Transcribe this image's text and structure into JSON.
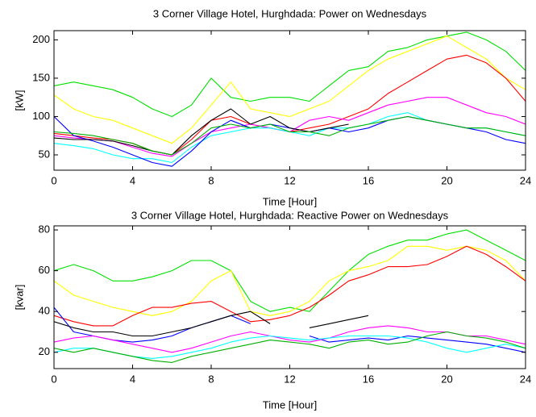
{
  "chart_data": [
    {
      "type": "line",
      "title": "3 Corner Village Hotel, Hurghdada: Power on Wednesdays",
      "xlabel": "Time [Hour]",
      "ylabel": "[kW]",
      "x": [
        0,
        1,
        2,
        3,
        4,
        5,
        6,
        7,
        8,
        9,
        10,
        11,
        12,
        13,
        14,
        15,
        16,
        17,
        18,
        19,
        20,
        21,
        22,
        23,
        24
      ],
      "xlim": [
        0,
        24
      ],
      "ylim": [
        30,
        212
      ],
      "xticks": [
        0,
        4,
        8,
        12,
        16,
        20,
        24
      ],
      "yticks": [
        50,
        100,
        150,
        200
      ],
      "series": [
        {
          "color": "#00e000",
          "values": [
            140,
            145,
            140,
            135,
            125,
            110,
            100,
            115,
            150,
            125,
            120,
            125,
            125,
            120,
            140,
            160,
            165,
            185,
            190,
            200,
            205,
            210,
            200,
            185,
            160
          ]
        },
        {
          "color": "#ffff00",
          "values": [
            128,
            110,
            100,
            95,
            85,
            75,
            65,
            85,
            115,
            145,
            110,
            105,
            100,
            110,
            120,
            140,
            160,
            175,
            185,
            195,
            205,
            190,
            175,
            150,
            135
          ]
        },
        {
          "color": "#ff0000",
          "values": [
            78,
            75,
            72,
            70,
            65,
            55,
            50,
            70,
            95,
            100,
            90,
            85,
            80,
            85,
            90,
            100,
            110,
            130,
            145,
            160,
            175,
            180,
            170,
            150,
            120
          ]
        },
        {
          "color": "#ff00ff",
          "values": [
            75,
            72,
            70,
            68,
            60,
            52,
            48,
            65,
            80,
            85,
            90,
            85,
            80,
            95,
            100,
            95,
            105,
            115,
            120,
            125,
            125,
            115,
            105,
            100,
            90
          ]
        },
        {
          "color": "#00ffff",
          "values": [
            65,
            62,
            58,
            50,
            45,
            45,
            40,
            60,
            75,
            80,
            85,
            85,
            80,
            75,
            85,
            85,
            90,
            100,
            105,
            95,
            90,
            85,
            85,
            80,
            75
          ]
        },
        {
          "color": "#0000ff",
          "values": [
            100,
            75,
            68,
            60,
            50,
            40,
            35,
            55,
            80,
            95,
            85,
            90,
            85,
            80,
            85,
            80,
            85,
            95,
            100,
            95,
            90,
            85,
            80,
            70,
            65
          ]
        },
        {
          "color": "#000000",
          "values": [
            72,
            70,
            70,
            68,
            62,
            55,
            50,
            75,
            95,
            110,
            90,
            100,
            85,
            80,
            85,
            90,
            null,
            null,
            null,
            null,
            null,
            null,
            null,
            null,
            null
          ]
        },
        {
          "color": "#00b000",
          "values": [
            80,
            78,
            75,
            70,
            65,
            55,
            50,
            65,
            85,
            90,
            85,
            90,
            80,
            80,
            75,
            85,
            90,
            95,
            100,
            95,
            90,
            85,
            85,
            80,
            75
          ]
        }
      ]
    },
    {
      "type": "line",
      "title": "3 Corner Village Hotel, Hurghdada: Reactive Power on Wednesdays",
      "xlabel": "Time [Hour]",
      "ylabel": "[kvar]",
      "x": [
        0,
        1,
        2,
        3,
        4,
        5,
        6,
        7,
        8,
        9,
        10,
        11,
        12,
        13,
        14,
        15,
        16,
        17,
        18,
        19,
        20,
        21,
        22,
        23,
        24
      ],
      "xlim": [
        0,
        24
      ],
      "ylim": [
        12,
        82
      ],
      "xticks": [
        0,
        4,
        8,
        12,
        16,
        20,
        24
      ],
      "yticks": [
        20,
        40,
        60,
        80
      ],
      "series": [
        {
          "color": "#00e000",
          "values": [
            60,
            63,
            60,
            55,
            55,
            57,
            60,
            65,
            65,
            60,
            45,
            40,
            42,
            40,
            50,
            60,
            68,
            72,
            75,
            75,
            78,
            80,
            75,
            70,
            65
          ]
        },
        {
          "color": "#ffff00",
          "values": [
            55,
            48,
            45,
            42,
            40,
            38,
            40,
            45,
            55,
            60,
            40,
            38,
            40,
            45,
            55,
            60,
            62,
            65,
            72,
            72,
            70,
            72,
            70,
            65,
            55
          ]
        },
        {
          "color": "#ff0000",
          "values": [
            38,
            35,
            33,
            33,
            38,
            42,
            42,
            44,
            45,
            40,
            35,
            36,
            38,
            42,
            48,
            55,
            58,
            62,
            62,
            63,
            67,
            72,
            68,
            62,
            55
          ]
        },
        {
          "color": "#0000ff",
          "values": [
            42,
            30,
            28,
            26,
            25,
            26,
            28,
            32,
            35,
            38,
            34,
            null,
            null,
            28,
            25,
            26,
            27,
            26,
            28,
            27,
            26,
            25,
            24,
            22,
            20
          ]
        },
        {
          "color": "#000000",
          "values": [
            35,
            32,
            30,
            30,
            28,
            28,
            30,
            32,
            35,
            38,
            40,
            34,
            null,
            32,
            34,
            36,
            38,
            null,
            null,
            null,
            null,
            null,
            null,
            null,
            null
          ]
        },
        {
          "color": "#ff00ff",
          "values": [
            25,
            27,
            28,
            26,
            24,
            22,
            20,
            22,
            25,
            28,
            30,
            28,
            26,
            25,
            27,
            30,
            32,
            33,
            32,
            30,
            30,
            28,
            28,
            26,
            24
          ]
        },
        {
          "color": "#00ffff",
          "values": [
            20,
            22,
            22,
            20,
            18,
            17,
            18,
            20,
            22,
            25,
            27,
            28,
            27,
            26,
            27,
            28,
            28,
            28,
            27,
            25,
            22,
            20,
            22,
            24,
            22
          ]
        },
        {
          "color": "#00b000",
          "values": [
            22,
            20,
            22,
            20,
            18,
            16,
            15,
            18,
            20,
            22,
            24,
            26,
            25,
            24,
            22,
            25,
            26,
            24,
            25,
            28,
            30,
            28,
            27,
            25,
            22
          ]
        }
      ]
    }
  ]
}
